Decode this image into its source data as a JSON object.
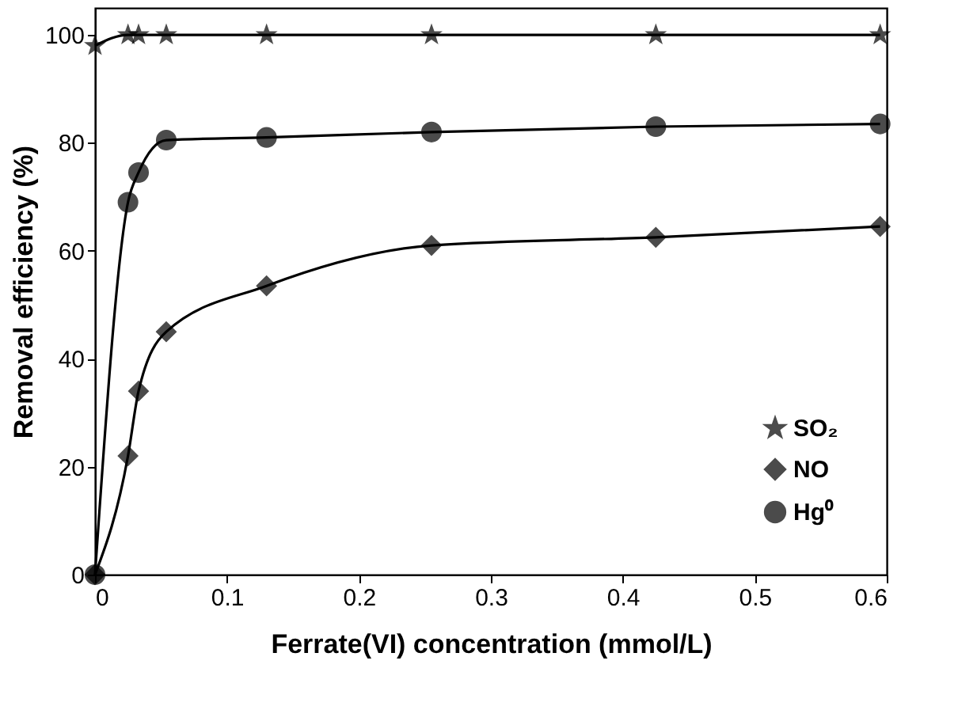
{
  "chart_data": {
    "type": "line",
    "xlabel": "Ferrate(VI) concentration (mmol/L)",
    "ylabel": "Removal efficiency (%)",
    "xlim": [
      0,
      0.6
    ],
    "xticks": [
      0,
      0.1,
      0.2,
      0.3,
      0.4,
      0.5,
      0.6
    ],
    "ylim": [
      0,
      105
    ],
    "yticks": [
      0,
      20,
      40,
      60,
      80,
      100
    ],
    "grid": false,
    "legend": "bottom right",
    "line_style": "solid",
    "series": [
      {
        "name": "SO₂",
        "color": "#000000",
        "marker": "star",
        "x": [
          0,
          0.025,
          0.033,
          0.054,
          0.13,
          0.255,
          0.425,
          0.595
        ],
        "values": [
          98,
          100,
          100,
          100,
          100,
          100,
          100,
          100
        ]
      },
      {
        "name": "NO",
        "color": "#000000",
        "marker": "diamond",
        "x": [
          0,
          0.025,
          0.033,
          0.054,
          0.13,
          0.255,
          0.425,
          0.595
        ],
        "values": [
          0,
          22,
          34,
          45,
          53.5,
          61,
          62.5,
          64.5
        ]
      },
      {
        "name": "Hg⁰",
        "color": "#000000",
        "marker": "circle",
        "x": [
          0,
          0.025,
          0.033,
          0.054,
          0.13,
          0.255,
          0.425,
          0.595
        ],
        "values": [
          0,
          69,
          74.5,
          80.5,
          81,
          82,
          83,
          83.5
        ]
      }
    ]
  }
}
